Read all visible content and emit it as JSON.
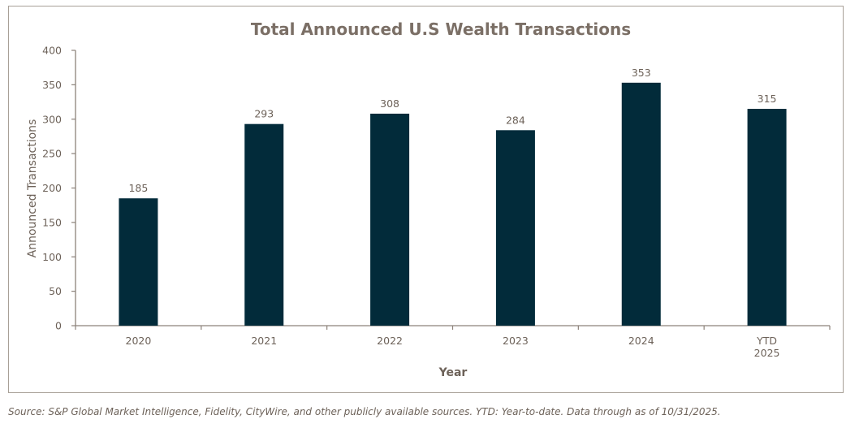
{
  "chart_data": {
    "type": "bar",
    "title": "Total Announced U.S Wealth Transactions",
    "xlabel": "Year",
    "ylabel": "Announced Transactions",
    "categories": [
      [
        "2020"
      ],
      [
        "2021"
      ],
      [
        "2022"
      ],
      [
        "2023"
      ],
      [
        "2024"
      ],
      [
        "YTD",
        "2025"
      ]
    ],
    "values": [
      185,
      293,
      308,
      284,
      353,
      315
    ],
    "data_labels": [
      "185",
      "293",
      "308",
      "284",
      "353",
      "315"
    ],
    "ylim": [
      0,
      400
    ],
    "yticks": [
      0,
      50,
      100,
      150,
      200,
      250,
      300,
      350,
      400
    ],
    "grid": false,
    "legend": "none",
    "colors": {
      "bar": "#022b3a",
      "text": "#6d6259",
      "title": "#7b6f66",
      "axis": "#8c827a"
    }
  },
  "footer": {
    "source": "Source: S&P Global Market Intelligence, Fidelity, CityWire, and other publicly available sources. YTD: Year-to-date. Data through as of 10/31/2025."
  }
}
